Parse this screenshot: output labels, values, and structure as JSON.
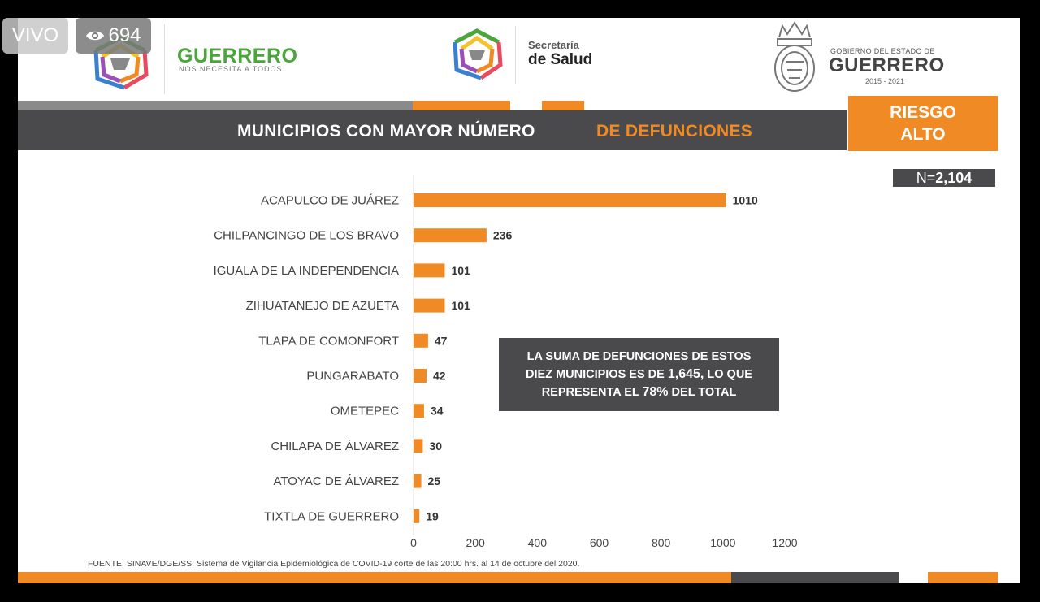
{
  "overlay": {
    "live_label": "VIVO",
    "viewer_count": "694",
    "viewer_icon": "eye-icon"
  },
  "header": {
    "brand_title": "GUERRERO",
    "brand_subtitle": "NOS NECESITA A TODOS",
    "salud_line1": "Secretaría",
    "salud_line2": "de Salud",
    "gov_line1": "GOBIERNO DEL ESTADO DE",
    "gov_line2": "GUERRERO",
    "gov_years": "2015 - 2021"
  },
  "title": {
    "part1": "MUNICIPIOS CON MAYOR NÚMERO",
    "part2": "DE  DEFUNCIONES"
  },
  "risk": {
    "line1": "RIESGO",
    "line2": "ALTO"
  },
  "n_badge": {
    "prefix": "N=",
    "value": "2,104"
  },
  "callout": {
    "line1": "LA SUMA DE DEFUNCIONES DE ESTOS",
    "line2_a": "DIEZ MUNICIPIOS ES DE ",
    "line2_b": "1,645,",
    "line2_c": " LO QUE",
    "line3_a": "REPRESENTA EL ",
    "line3_b": "78%",
    "line3_c": " DEL TOTAL"
  },
  "source": "FUENTE: SINAVE/DGE/SS: Sistema de Vigilancia Epidemiológica de COVID-19 corte de las 20:00 hrs. al 14 de  octubre del 2020.",
  "colors": {
    "orange": "#f08a24",
    "dark": "#4a4a4c",
    "green": "#4aa63b"
  },
  "chart_data": {
    "type": "bar",
    "orientation": "horizontal",
    "categories": [
      "ACAPULCO DE JUÁREZ",
      "CHILPANCINGO DE LOS BRAVO",
      "IGUALA DE LA INDEPENDENCIA",
      "ZIHUATANEJO DE AZUETA",
      "TLAPA DE COMONFORT",
      "PUNGARABATO",
      "OMETEPEC",
      "CHILAPA DE ÁLVAREZ",
      "ATOYAC DE ÁLVAREZ",
      "TIXTLA DE  GUERRERO"
    ],
    "values": [
      1010,
      236,
      101,
      101,
      47,
      42,
      34,
      30,
      25,
      19
    ],
    "xlim": [
      0,
      1200
    ],
    "xticks": [
      0,
      200,
      400,
      600,
      800,
      1000,
      1200
    ],
    "grid": false,
    "bar_color": "#f08a24"
  }
}
